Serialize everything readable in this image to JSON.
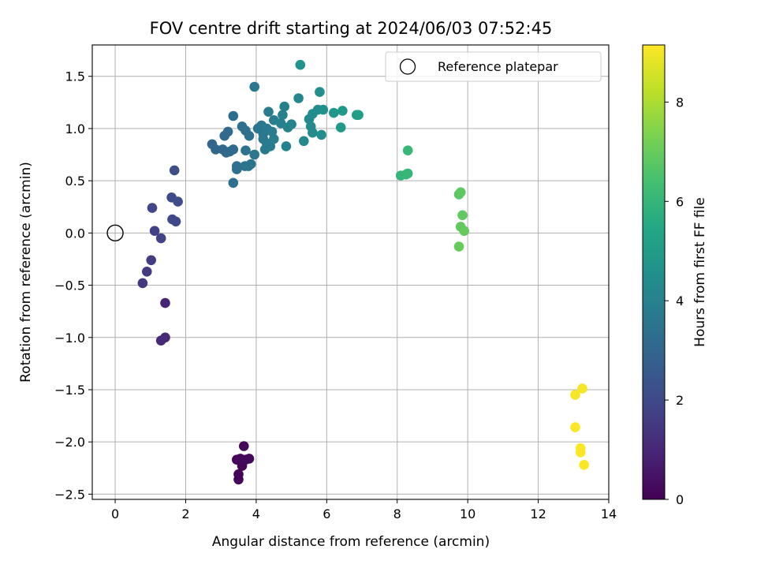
{
  "chart_data": {
    "type": "scatter",
    "title": "FOV centre drift starting at 2024/06/03 07:52:45",
    "xlabel": "Angular distance from reference (arcmin)",
    "ylabel": "Rotation from reference (arcmin)",
    "xlim": [
      -0.65,
      14
    ],
    "ylim": [
      -2.55,
      1.8
    ],
    "xticks": [
      0,
      2,
      4,
      6,
      8,
      10,
      12,
      14
    ],
    "xtick_labels": [
      "0",
      "2",
      "4",
      "6",
      "8",
      "10",
      "12",
      "14"
    ],
    "yticks": [
      -2.5,
      -2.0,
      -1.5,
      -1.0,
      -0.5,
      0.0,
      0.5,
      1.0,
      1.5
    ],
    "ytick_labels": [
      "−2.5",
      "−2.0",
      "−1.5",
      "−1.0",
      "−0.5",
      "0.0",
      "0.5",
      "1.0",
      "1.5"
    ],
    "grid": true,
    "legend": {
      "position": "top-right",
      "label": "Reference platepar"
    },
    "reference_point": {
      "x": 0,
      "y": 0
    },
    "colorbar": {
      "label": "Hours from first FF file",
      "min": 0,
      "max": 9.15,
      "ticks": [
        0,
        2,
        4,
        6,
        8
      ],
      "tick_labels": [
        "0",
        "2",
        "4",
        "6",
        "8"
      ],
      "colormap": "viridis"
    },
    "points": [
      {
        "x": 3.45,
        "y": -2.17,
        "c": 0.05
      },
      {
        "x": 3.5,
        "y": -2.31,
        "c": 0.08
      },
      {
        "x": 3.5,
        "y": -2.36,
        "c": 0.1
      },
      {
        "x": 3.6,
        "y": -2.23,
        "c": 0.12
      },
      {
        "x": 3.65,
        "y": -2.04,
        "c": 0.15
      },
      {
        "x": 3.55,
        "y": -2.16,
        "c": 0.18
      },
      {
        "x": 3.7,
        "y": -2.17,
        "c": 0.2
      },
      {
        "x": 3.8,
        "y": -2.16,
        "c": 0.22
      },
      {
        "x": 1.42,
        "y": -0.67,
        "c": 0.9
      },
      {
        "x": 1.42,
        "y": -1.0,
        "c": 1.0
      },
      {
        "x": 1.3,
        "y": -1.03,
        "c": 1.05
      },
      {
        "x": 0.78,
        "y": -0.48,
        "c": 1.5
      },
      {
        "x": 0.9,
        "y": -0.37,
        "c": 1.55
      },
      {
        "x": 1.02,
        "y": -0.26,
        "c": 1.6
      },
      {
        "x": 1.12,
        "y": 0.02,
        "c": 1.75
      },
      {
        "x": 1.3,
        "y": -0.05,
        "c": 1.8
      },
      {
        "x": 1.05,
        "y": 0.24,
        "c": 1.9
      },
      {
        "x": 1.62,
        "y": 0.13,
        "c": 2.0
      },
      {
        "x": 1.72,
        "y": 0.11,
        "c": 2.05
      },
      {
        "x": 1.6,
        "y": 0.34,
        "c": 2.1
      },
      {
        "x": 1.78,
        "y": 0.3,
        "c": 2.15
      },
      {
        "x": 1.68,
        "y": 0.6,
        "c": 2.2
      },
      {
        "x": 2.75,
        "y": 0.85,
        "c": 3.0
      },
      {
        "x": 2.85,
        "y": 0.8,
        "c": 3.05
      },
      {
        "x": 3.05,
        "y": 0.8,
        "c": 3.1
      },
      {
        "x": 3.15,
        "y": 0.77,
        "c": 3.1
      },
      {
        "x": 3.25,
        "y": 0.78,
        "c": 3.15
      },
      {
        "x": 3.35,
        "y": 0.8,
        "c": 3.15
      },
      {
        "x": 3.1,
        "y": 0.93,
        "c": 3.2
      },
      {
        "x": 3.2,
        "y": 0.97,
        "c": 3.2
      },
      {
        "x": 3.35,
        "y": 1.12,
        "c": 3.25
      },
      {
        "x": 3.35,
        "y": 0.48,
        "c": 3.3
      },
      {
        "x": 3.45,
        "y": 0.61,
        "c": 3.3
      },
      {
        "x": 3.45,
        "y": 0.64,
        "c": 3.35
      },
      {
        "x": 3.6,
        "y": 1.02,
        "c": 3.35
      },
      {
        "x": 3.7,
        "y": 0.98,
        "c": 3.4
      },
      {
        "x": 3.8,
        "y": 0.93,
        "c": 3.4
      },
      {
        "x": 3.7,
        "y": 0.79,
        "c": 3.45
      },
      {
        "x": 3.68,
        "y": 0.64,
        "c": 3.45
      },
      {
        "x": 3.78,
        "y": 0.64,
        "c": 3.5
      },
      {
        "x": 3.85,
        "y": 0.66,
        "c": 3.5
      },
      {
        "x": 3.95,
        "y": 0.75,
        "c": 3.55
      },
      {
        "x": 3.95,
        "y": 1.4,
        "c": 3.6
      },
      {
        "x": 4.05,
        "y": 1.0,
        "c": 3.6
      },
      {
        "x": 4.15,
        "y": 1.03,
        "c": 3.65
      },
      {
        "x": 4.2,
        "y": 0.95,
        "c": 3.65
      },
      {
        "x": 4.2,
        "y": 0.9,
        "c": 3.7
      },
      {
        "x": 4.25,
        "y": 0.8,
        "c": 3.7
      },
      {
        "x": 4.3,
        "y": 0.86,
        "c": 3.75
      },
      {
        "x": 4.3,
        "y": 1.0,
        "c": 3.75
      },
      {
        "x": 4.35,
        "y": 1.16,
        "c": 3.8
      },
      {
        "x": 4.4,
        "y": 0.83,
        "c": 3.8
      },
      {
        "x": 4.45,
        "y": 0.97,
        "c": 3.85
      },
      {
        "x": 4.5,
        "y": 1.08,
        "c": 3.85
      },
      {
        "x": 4.5,
        "y": 0.9,
        "c": 3.9
      },
      {
        "x": 4.7,
        "y": 1.05,
        "c": 3.95
      },
      {
        "x": 4.75,
        "y": 1.13,
        "c": 4.0
      },
      {
        "x": 4.8,
        "y": 1.21,
        "c": 4.0
      },
      {
        "x": 4.85,
        "y": 0.83,
        "c": 4.05
      },
      {
        "x": 4.9,
        "y": 1.01,
        "c": 4.05
      },
      {
        "x": 5.0,
        "y": 1.04,
        "c": 4.1
      },
      {
        "x": 5.2,
        "y": 1.29,
        "c": 4.2
      },
      {
        "x": 5.35,
        "y": 0.88,
        "c": 4.25
      },
      {
        "x": 5.5,
        "y": 1.09,
        "c": 4.3
      },
      {
        "x": 5.55,
        "y": 1.02,
        "c": 4.35
      },
      {
        "x": 5.6,
        "y": 0.96,
        "c": 4.35
      },
      {
        "x": 5.6,
        "y": 1.14,
        "c": 4.4
      },
      {
        "x": 5.75,
        "y": 1.18,
        "c": 4.45
      },
      {
        "x": 5.8,
        "y": 1.35,
        "c": 4.5
      },
      {
        "x": 5.85,
        "y": 0.94,
        "c": 4.5
      },
      {
        "x": 5.9,
        "y": 1.18,
        "c": 4.55
      },
      {
        "x": 5.25,
        "y": 1.61,
        "c": 4.6
      },
      {
        "x": 6.2,
        "y": 1.15,
        "c": 4.8
      },
      {
        "x": 6.4,
        "y": 1.01,
        "c": 4.9
      },
      {
        "x": 6.45,
        "y": 1.17,
        "c": 4.9
      },
      {
        "x": 6.85,
        "y": 1.13,
        "c": 5.1
      },
      {
        "x": 6.9,
        "y": 1.13,
        "c": 5.15
      },
      {
        "x": 8.1,
        "y": 0.55,
        "c": 6.0
      },
      {
        "x": 8.25,
        "y": 0.56,
        "c": 6.05
      },
      {
        "x": 8.3,
        "y": 0.57,
        "c": 6.05
      },
      {
        "x": 8.3,
        "y": 0.79,
        "c": 6.1
      },
      {
        "x": 9.75,
        "y": 0.37,
        "c": 6.8
      },
      {
        "x": 9.8,
        "y": 0.39,
        "c": 6.85
      },
      {
        "x": 9.85,
        "y": 0.17,
        "c": 6.9
      },
      {
        "x": 9.8,
        "y": 0.06,
        "c": 6.9
      },
      {
        "x": 9.9,
        "y": 0.02,
        "c": 6.95
      },
      {
        "x": 9.75,
        "y": -0.13,
        "c": 7.0
      },
      {
        "x": 13.25,
        "y": -1.49,
        "c": 9.05
      },
      {
        "x": 13.05,
        "y": -1.55,
        "c": 9.05
      },
      {
        "x": 13.05,
        "y": -1.86,
        "c": 9.1
      },
      {
        "x": 13.2,
        "y": -2.06,
        "c": 9.1
      },
      {
        "x": 13.2,
        "y": -2.1,
        "c": 9.12
      },
      {
        "x": 13.3,
        "y": -2.22,
        "c": 9.15
      }
    ]
  }
}
